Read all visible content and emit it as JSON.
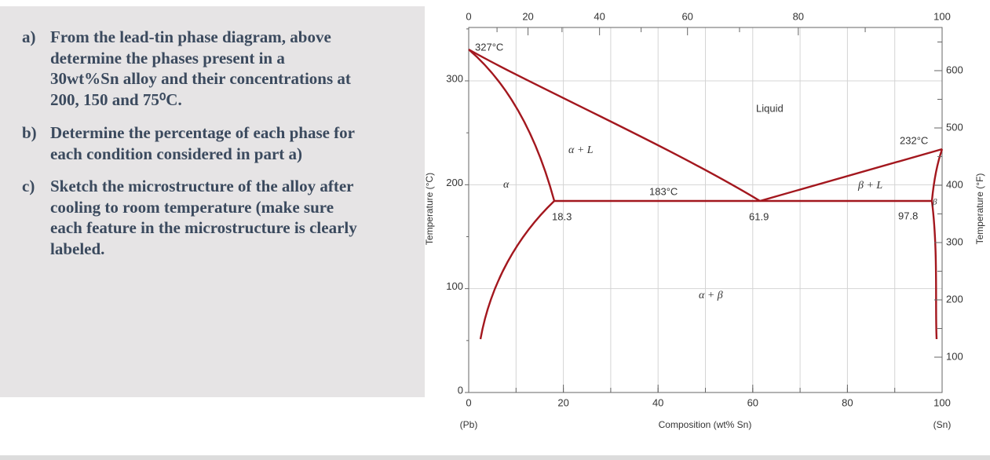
{
  "questions": [
    {
      "label": "a)",
      "lines": [
        "From the lead-tin phase diagram, above",
        "determine the phases present  in a",
        "30wt%Sn alloy and their concentrations at",
        "200, 150 and 75⁰C."
      ]
    },
    {
      "label": "b)",
      "lines": [
        "Determine the percentage of each phase for",
        "each condition considered in part a)"
      ]
    },
    {
      "label": "c)",
      "lines": [
        "Sketch the microstructure of the alloy after",
        "cooling to room temperature (make sure",
        "each feature in the microstructure is clearly",
        "labeled."
      ]
    }
  ],
  "diagram": {
    "annotations": [
      "327°C",
      "Liquid",
      "232°C",
      "α + L",
      "α",
      "183°C",
      "β + L",
      "β",
      "18.3",
      "61.9",
      "97.8",
      "α + β"
    ],
    "bottom_axis": {
      "label": "Composition (wt% Sn)",
      "left_end": "(Pb)",
      "right_end": "(Sn)",
      "ticks": [
        0,
        20,
        40,
        60,
        80,
        100
      ]
    },
    "top_axis": {
      "ticks": [
        0,
        20,
        40,
        60,
        80,
        100
      ]
    },
    "left_axis": {
      "label": "Temperature (°C)",
      "ticks": [
        0,
        100,
        200,
        300
      ]
    },
    "right_axis": {
      "label": "Temperature (°F)",
      "ticks": [
        100,
        200,
        300,
        400,
        500,
        600
      ]
    }
  }
}
